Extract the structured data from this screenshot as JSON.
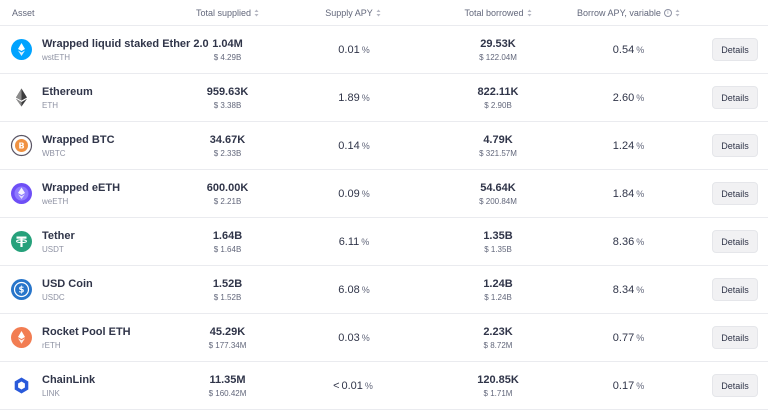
{
  "headers": {
    "asset": "Asset",
    "total_supplied": "Total supplied",
    "supply_apy": "Supply APY",
    "total_borrowed": "Total borrowed",
    "borrow_apy": "Borrow APY, variable"
  },
  "rows": [
    {
      "name": "Wrapped liquid staked Ether 2.0",
      "symbol": "wstETH",
      "icon": "wsteth-icon",
      "supplied": "1.04M",
      "supplied_usd": "$ 4.29B",
      "supply_apy_prefix": "",
      "supply_apy": "0.01",
      "pct": "%",
      "borrowed": "29.53K",
      "borrowed_usd": "$ 122.04M",
      "borrow_apy": "0.54",
      "details": "Details"
    },
    {
      "name": "Ethereum",
      "symbol": "ETH",
      "icon": "eth-icon",
      "supplied": "959.63K",
      "supplied_usd": "$ 3.38B",
      "supply_apy_prefix": "",
      "supply_apy": "1.89",
      "pct": "%",
      "borrowed": "822.11K",
      "borrowed_usd": "$ 2.90B",
      "borrow_apy": "2.60",
      "details": "Details"
    },
    {
      "name": "Wrapped BTC",
      "symbol": "WBTC",
      "icon": "wbtc-icon",
      "supplied": "34.67K",
      "supplied_usd": "$ 2.33B",
      "supply_apy_prefix": "",
      "supply_apy": "0.14",
      "pct": "%",
      "borrowed": "4.79K",
      "borrowed_usd": "$ 321.57M",
      "borrow_apy": "1.24",
      "details": "Details"
    },
    {
      "name": "Wrapped eETH",
      "symbol": "weETH",
      "icon": "weeth-icon",
      "supplied": "600.00K",
      "supplied_usd": "$ 2.21B",
      "supply_apy_prefix": "",
      "supply_apy": "0.09",
      "pct": "%",
      "borrowed": "54.64K",
      "borrowed_usd": "$ 200.84M",
      "borrow_apy": "1.84",
      "details": "Details"
    },
    {
      "name": "Tether",
      "symbol": "USDT",
      "icon": "usdt-icon",
      "supplied": "1.64B",
      "supplied_usd": "$ 1.64B",
      "supply_apy_prefix": "",
      "supply_apy": "6.11",
      "pct": "%",
      "borrowed": "1.35B",
      "borrowed_usd": "$ 1.35B",
      "borrow_apy": "8.36",
      "details": "Details"
    },
    {
      "name": "USD Coin",
      "symbol": "USDC",
      "icon": "usdc-icon",
      "supplied": "1.52B",
      "supplied_usd": "$ 1.52B",
      "supply_apy_prefix": "",
      "supply_apy": "6.08",
      "pct": "%",
      "borrowed": "1.24B",
      "borrowed_usd": "$ 1.24B",
      "borrow_apy": "8.34",
      "details": "Details"
    },
    {
      "name": "Rocket Pool ETH",
      "symbol": "rETH",
      "icon": "reth-icon",
      "supplied": "45.29K",
      "supplied_usd": "$ 177.34M",
      "supply_apy_prefix": "",
      "supply_apy": "0.03",
      "pct": "%",
      "borrowed": "2.23K",
      "borrowed_usd": "$ 8.72M",
      "borrow_apy": "0.77",
      "details": "Details"
    },
    {
      "name": "ChainLink",
      "symbol": "LINK",
      "icon": "link-icon",
      "supplied": "11.35M",
      "supplied_usd": "$ 160.42M",
      "supply_apy_prefix": "<",
      "supply_apy": "0.01",
      "pct": "%",
      "borrowed": "120.85K",
      "borrowed_usd": "$ 1.71M",
      "borrow_apy": "0.17",
      "details": "Details"
    }
  ]
}
